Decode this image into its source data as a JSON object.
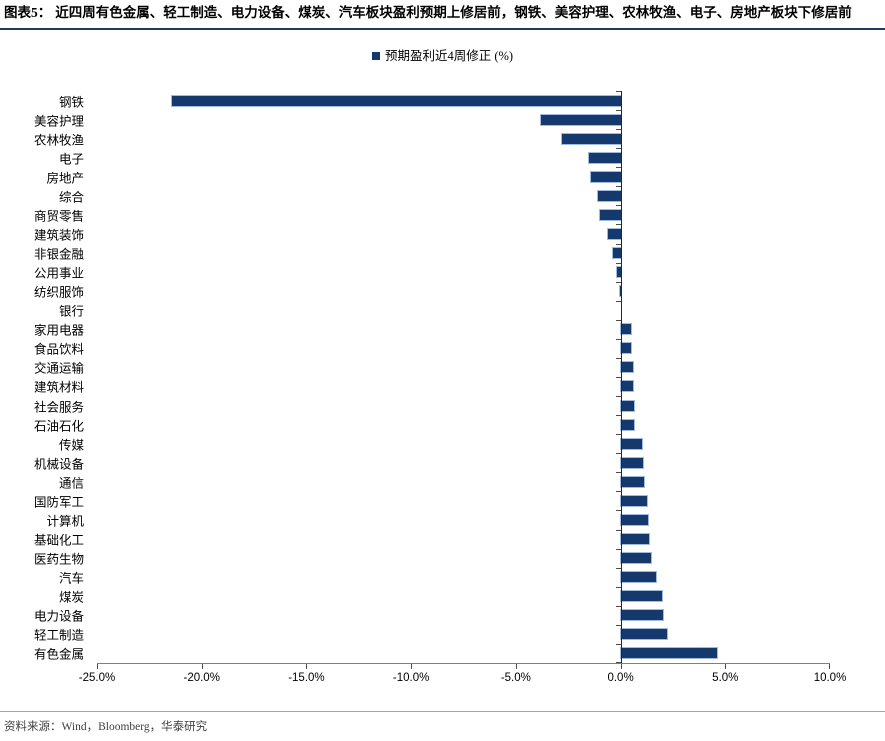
{
  "figure": {
    "label": "图表5：",
    "title": "近四周有色金属、轻工制造、电力设备、煤炭、汽车板块盈利预期上修居前，钢铁、美容护理、农林牧渔、电子、房地产板块下修居前"
  },
  "legend": {
    "label": "预期盈利近4周修正 (%)"
  },
  "chart_data": {
    "type": "bar",
    "orientation": "horizontal",
    "title": "预期盈利近4周修正 (%)",
    "categories": [
      "钢铁",
      "美容护理",
      "农林牧渔",
      "电子",
      "房地产",
      "综合",
      "商贸零售",
      "建筑装饰",
      "非银金融",
      "公用事业",
      "纺织服饰",
      "银行",
      "家用电器",
      "食品饮料",
      "交通运输",
      "建筑材料",
      "社会服务",
      "石油石化",
      "传媒",
      "机械设备",
      "通信",
      "国防军工",
      "计算机",
      "基础化工",
      "医药生物",
      "汽车",
      "煤炭",
      "电力设备",
      "轻工制造",
      "有色金属"
    ],
    "values": [
      -21.4,
      -3.8,
      -2.8,
      -1.5,
      -1.4,
      -1.1,
      -1.0,
      -0.6,
      -0.35,
      -0.15,
      -0.05,
      0.0,
      0.5,
      0.5,
      0.6,
      0.6,
      0.65,
      0.65,
      1.0,
      1.05,
      1.1,
      1.25,
      1.3,
      1.35,
      1.45,
      1.7,
      2.0,
      2.05,
      2.2,
      4.6
    ],
    "xlim": [
      -25,
      10
    ],
    "x_ticks": [
      -25,
      -20,
      -15,
      -10,
      -5,
      0,
      5,
      10
    ],
    "x_tick_labels": [
      "-25.0%",
      "-20.0%",
      "-15.0%",
      "-10.0%",
      "-5.0%",
      "0.0%",
      "5.0%",
      "10.0%"
    ],
    "bar_color": "#16396D",
    "bar_outline_color": "#9FBBDF",
    "grid": false,
    "legend_position": "top-center"
  },
  "footer": {
    "source": "资料来源：Wind，Bloomberg，华泰研究"
  }
}
